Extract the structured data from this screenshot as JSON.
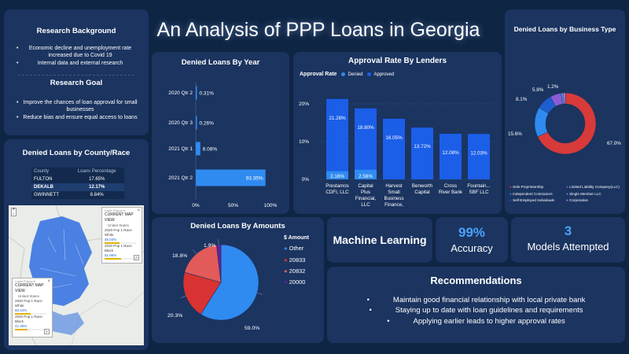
{
  "title": "An Analysis of PPP Loans in Georgia",
  "research": {
    "bg_title": "Research Background",
    "bg_items": [
      "Economic decline and unemployment rate increased due to Covid 19",
      "Internal data and external research"
    ],
    "goal_title": "Research Goal",
    "goal_items": [
      "Improve the chances of loan approval for small businesses",
      "Reduce bias and ensure equal access to loans"
    ]
  },
  "county": {
    "title": "Denied Loans by County/Race",
    "headers": [
      "County",
      "Loans Percentage"
    ],
    "rows": [
      [
        "FULTON",
        "17.65%"
      ],
      [
        "DEKALB",
        "12.17%"
      ],
      [
        "GWINNETT",
        "8.84%"
      ]
    ]
  },
  "map": {
    "popup1": {
      "title": "CURRENT MAP VIEW",
      "sub": "United States",
      "l1": "2020 Pop 1 Race White",
      "v1": "48.04%",
      "l2": "2020 Pop 1 Race Black",
      "v2": "51.96%",
      "f1": 0.48,
      "f2": 0.52
    },
    "popup2": {
      "title": "CURRENT MAP VIEW",
      "sub": "United States",
      "l1": "2020 Pop 1 Race White",
      "v1": "50.44%",
      "l2": "2020 Pop 1 Race Black",
      "v2": "41.36%",
      "f1": 0.5,
      "f2": 0.41
    }
  },
  "year_chart": {
    "title": "Denied Loans By Year",
    "categories": [
      "2020 Qtr 2",
      "2020 Qtr 3",
      "2021 Qtr 1",
      "2021 Qtr 2"
    ],
    "values": [
      0.31,
      0.26,
      6.08,
      93.35
    ],
    "labels": [
      "0.31%",
      "0.26%",
      "6.08%",
      "93.35%"
    ],
    "ticks": [
      "0%",
      "50%",
      "100%"
    ],
    "xlim": [
      0,
      100
    ]
  },
  "lender_chart": {
    "title": "Approval Rate By Lenders",
    "legend_title": "Approval Rate",
    "legend": [
      "Denied",
      "Approved"
    ],
    "yticks": [
      "20%",
      "10%",
      "0%"
    ],
    "ylim": [
      0,
      25
    ],
    "lenders": [
      {
        "name": "Prestamos CDFI, LLC",
        "approved": 21.28,
        "denied": 2.16,
        "approved_label": "21.28%",
        "denied_label": "2.16%"
      },
      {
        "name": "Capital Plus Financial, LLC",
        "approved": 18.8,
        "denied": 2.56,
        "approved_label": "18.80%",
        "denied_label": "2.56%"
      },
      {
        "name": "Harvest Small Business Finance, ...",
        "approved": 16.05,
        "denied": 0,
        "approved_label": "16.05%",
        "denied_label": ""
      },
      {
        "name": "Benworth Capital",
        "approved": 13.72,
        "denied": 0,
        "approved_label": "13.72%",
        "denied_label": ""
      },
      {
        "name": "Cross River Bank",
        "approved": 12.08,
        "denied": 0,
        "approved_label": "12.08%",
        "denied_label": ""
      },
      {
        "name": "Fountain... SBF LLC",
        "approved": 12.03,
        "denied": 0,
        "approved_label": "12.03%",
        "denied_label": ""
      }
    ]
  },
  "chart_data": {
    "type": "pie",
    "title": "Denied Loans By Amounts",
    "legend_title": "$ Amount",
    "slices": [
      {
        "name": "Other",
        "value": 59.0,
        "label": "59.0%",
        "color": "#2f8bf0"
      },
      {
        "name": "20833",
        "value": 20.3,
        "label": "20.3%",
        "color": "#d83232"
      },
      {
        "name": "20832",
        "value": 18.8,
        "label": "18.8%",
        "color": "#e35a5a"
      },
      {
        "name": "20000",
        "value": 1.9,
        "label": "1.9%",
        "color": "#6a1f9a"
      }
    ]
  },
  "business_chart": {
    "title": "Denied Loans by Business Type",
    "slices": [
      {
        "name": "Sole Proprietorship",
        "value": 67.0,
        "label": "67.0%",
        "color": "#d83a3a"
      },
      {
        "name": "Independent Contractors",
        "value": 15.6,
        "label": "15.6%",
        "color": "#2f8bf0"
      },
      {
        "name": "Self-Employed Individuals",
        "value": 8.1,
        "label": "8.1%",
        "color": "#1d5fd1"
      },
      {
        "name": "Limited Liability Company(LLC)",
        "value": 5.8,
        "label": "5.8%",
        "color": "#8a5cd6"
      },
      {
        "name": "Single Member LLC",
        "value": 1.2,
        "label": "1.2%",
        "color": "#5a8fd8"
      },
      {
        "name": "Corporation",
        "value": 1.0,
        "label": "",
        "color": "#b583e0"
      }
    ]
  },
  "ml": {
    "title": "Machine Learning",
    "accuracy_value": "99%",
    "accuracy_label": "Accuracy",
    "models_value": "3",
    "models_label": "Models Attempted"
  },
  "recs": {
    "title": "Recommendations",
    "items": [
      "Maintain good financial relationship with local private bank",
      "Staying up to date with loan guidelines and requirements",
      "Applying earlier leads to higher approval rates"
    ]
  },
  "colors": {
    "bg": "#0f2544",
    "card": "#1b3460",
    "accent": "#2f8bf0",
    "accent_text": "#4aa3ff"
  }
}
